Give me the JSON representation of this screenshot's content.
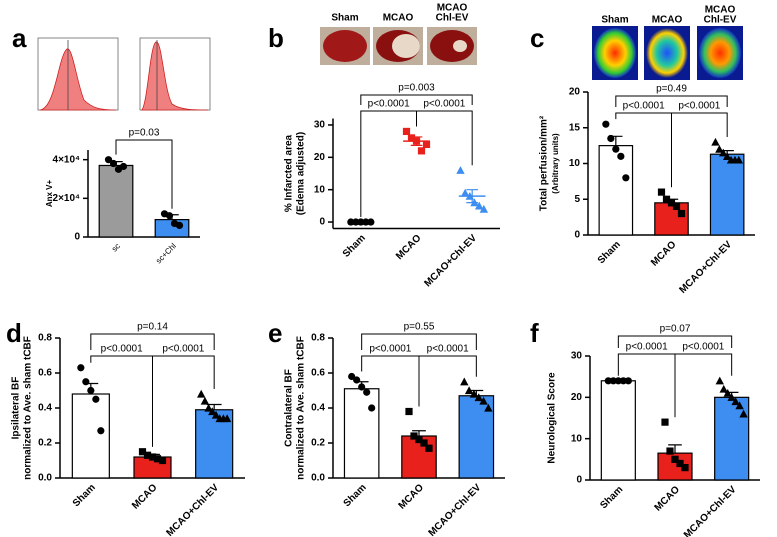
{
  "chart_data": [
    {
      "type": "bar",
      "panel_label": "a",
      "y_label": "Anx V+",
      "categories": [
        "sc",
        "sc+Chl"
      ],
      "values": [
        37000,
        9000
      ],
      "errors": [
        2000,
        2500
      ],
      "points": [
        [
          40000,
          38000,
          35000,
          36500
        ],
        [
          12000,
          11000,
          7000,
          6000
        ]
      ],
      "colors": [
        "#9b9b9b",
        "#3d8ef0"
      ],
      "point_colors": [
        "#000000",
        "#000000"
      ],
      "markers": [
        "circle",
        "circle"
      ],
      "ylim": [
        0,
        45000
      ],
      "yticks": [
        0,
        {
          "value": 20000,
          "label": "2×10⁴"
        },
        {
          "value": 40000,
          "label": "4×10⁴"
        }
      ],
      "comparisons": [
        {
          "from": 0,
          "to": 1,
          "label": "p=0.03"
        }
      ]
    },
    {
      "type": "dotplot",
      "panel_label": "b",
      "y_label": "% Infarcted area",
      "y_sublabel": "(Edema adjusted)",
      "image_labels": [
        [
          "Sham"
        ],
        [
          "MCAO"
        ],
        [
          "MCAO",
          "Chl-EV"
        ]
      ],
      "categories": [
        "Sham",
        "MCAO",
        "MCAO+Chl-EV"
      ],
      "values": [
        0,
        25,
        8
      ],
      "errors": [
        0,
        1.3,
        2
      ],
      "points": [
        [
          0,
          0,
          0,
          0,
          0
        ],
        [
          28,
          26,
          25,
          22,
          24
        ],
        [
          16,
          9,
          8,
          6,
          5,
          4
        ]
      ],
      "colors": [
        "#000000",
        "#e8211c",
        "#3d8ef0"
      ],
      "point_colors": [
        "#000000",
        "#e8211c",
        "#3d8ef0"
      ],
      "markers": [
        "circle",
        "square",
        "triangle"
      ],
      "ylim": [
        -2,
        32
      ],
      "yticks": [
        0,
        10,
        20,
        30
      ],
      "comparisons": [
        {
          "from": 0,
          "to": 2,
          "label": "p=0.003"
        },
        {
          "from": 0,
          "to": 1,
          "label": "p<0.0001"
        },
        {
          "from": 1,
          "to": 2,
          "label": "p<0.0001"
        }
      ]
    },
    {
      "type": "bar",
      "panel_label": "c",
      "y_label": "Total perfusion/mm²",
      "y_sublabel": "(Arbitrary units)",
      "image_labels": [
        [
          "Sham"
        ],
        [
          "MCAO"
        ],
        [
          "MCAO",
          "Chl-EV"
        ]
      ],
      "categories": [
        "Sham",
        "MCAO",
        "MCAO+Chl-EV"
      ],
      "values": [
        12.5,
        4.5,
        11.3
      ],
      "errors": [
        1.3,
        0.5,
        0.5
      ],
      "points": [
        [
          15.5,
          13.5,
          12,
          11,
          8
        ],
        [
          6,
          5,
          4.5,
          4,
          3
        ],
        [
          13,
          12,
          11.5,
          11,
          10.5,
          10.5,
          10.5
        ]
      ],
      "colors": [
        "#ffffff",
        "#e8211c",
        "#3d8ef0"
      ],
      "point_colors": [
        "#000000",
        "#000000",
        "#000000"
      ],
      "markers": [
        "circle",
        "square",
        "triangle"
      ],
      "ylim": [
        0,
        20
      ],
      "yticks": [
        0,
        5,
        10,
        15,
        20
      ],
      "comparisons": [
        {
          "from": 0,
          "to": 2,
          "label": "p=0.49"
        },
        {
          "from": 0,
          "to": 1,
          "label": "p<0.0001"
        },
        {
          "from": 1,
          "to": 2,
          "label": "p<0.0001"
        }
      ]
    },
    {
      "type": "bar",
      "panel_label": "d",
      "y_label": "Ipsilateral BF",
      "y_sublabel": "normalized to Ave. sham tCBF",
      "categories": [
        "Sham",
        "MCAO",
        "MCAO+Chl-EV"
      ],
      "values": [
        0.48,
        0.12,
        0.39
      ],
      "errors": [
        0.06,
        0.015,
        0.03
      ],
      "points": [
        [
          0.63,
          0.55,
          0.5,
          0.45,
          0.27
        ],
        [
          0.15,
          0.13,
          0.12,
          0.11,
          0.1
        ],
        [
          0.48,
          0.44,
          0.4,
          0.38,
          0.36,
          0.34,
          0.34,
          0.34
        ]
      ],
      "colors": [
        "#ffffff",
        "#e8211c",
        "#3d8ef0"
      ],
      "point_colors": [
        "#000000",
        "#000000",
        "#000000"
      ],
      "markers": [
        "circle",
        "square",
        "triangle"
      ],
      "ylim": [
        0,
        0.8
      ],
      "yticks": [
        {
          "value": 0,
          "label": "0.0"
        },
        0.2,
        0.4,
        0.6,
        0.8
      ],
      "comparisons": [
        {
          "from": 0,
          "to": 2,
          "label": "p=0.14"
        },
        {
          "from": 0,
          "to": 1,
          "label": "p<0.0001"
        },
        {
          "from": 1,
          "to": 2,
          "label": "p<0.0001"
        }
      ]
    },
    {
      "type": "bar",
      "panel_label": "e",
      "y_label": "Contralateral BF",
      "y_sublabel": "normalized to Ave. sham tCBF",
      "categories": [
        "Sham",
        "MCAO",
        "MCAO+Chl-EV"
      ],
      "values": [
        0.51,
        0.24,
        0.47
      ],
      "errors": [
        0.04,
        0.03,
        0.03
      ],
      "points": [
        [
          0.58,
          0.56,
          0.52,
          0.49,
          0.4
        ],
        [
          0.38,
          0.24,
          0.22,
          0.2,
          0.17
        ],
        [
          0.55,
          0.5,
          0.48,
          0.46,
          0.44,
          0.4
        ]
      ],
      "colors": [
        "#ffffff",
        "#e8211c",
        "#3d8ef0"
      ],
      "point_colors": [
        "#000000",
        "#000000",
        "#000000"
      ],
      "markers": [
        "circle",
        "square",
        "triangle"
      ],
      "ylim": [
        0,
        0.8
      ],
      "yticks": [
        {
          "value": 0,
          "label": "0.0"
        },
        0.2,
        0.4,
        0.6,
        0.8
      ],
      "comparisons": [
        {
          "from": 0,
          "to": 2,
          "label": "p=0.55"
        },
        {
          "from": 0,
          "to": 1,
          "label": "p<0.0001"
        },
        {
          "from": 1,
          "to": 2,
          "label": "p<0.0001"
        }
      ]
    },
    {
      "type": "bar",
      "panel_label": "f",
      "y_label": "Neurological Score",
      "categories": [
        "Sham",
        "MCAO",
        "MCAO+Chl-EV"
      ],
      "values": [
        24,
        6.5,
        20
      ],
      "errors": [
        0,
        2,
        1.2
      ],
      "points": [
        [
          24,
          24,
          24,
          24,
          24
        ],
        [
          14,
          7,
          5,
          4,
          3
        ],
        [
          24,
          22,
          21,
          20,
          19,
          18,
          16
        ]
      ],
      "colors": [
        "#ffffff",
        "#e8211c",
        "#3d8ef0"
      ],
      "point_colors": [
        "#000000",
        "#000000",
        "#000000"
      ],
      "markers": [
        "circle",
        "square",
        "triangle"
      ],
      "ylim": [
        0,
        30
      ],
      "yticks": [
        0,
        10,
        20,
        30
      ],
      "comparisons": [
        {
          "from": 0,
          "to": 2,
          "label": "p=0.07"
        },
        {
          "from": 0,
          "to": 1,
          "label": "p<0.0001"
        },
        {
          "from": 1,
          "to": 2,
          "label": "p<0.0001"
        }
      ]
    }
  ]
}
